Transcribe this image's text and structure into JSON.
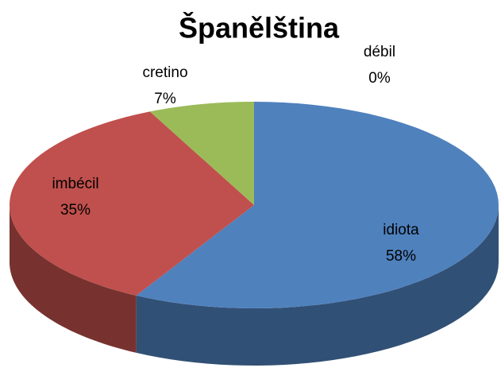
{
  "chart_data": {
    "type": "pie3d",
    "title": "Španělština",
    "categories": [
      "idiota",
      "imbécil",
      "cretino",
      "débil"
    ],
    "values": [
      58,
      35,
      7,
      0
    ],
    "value_labels": [
      "58%",
      "35%",
      "7%",
      "0%"
    ],
    "colors": [
      "#4f81bd",
      "#c0504d",
      "#9bbb59",
      "#8064a2"
    ]
  }
}
